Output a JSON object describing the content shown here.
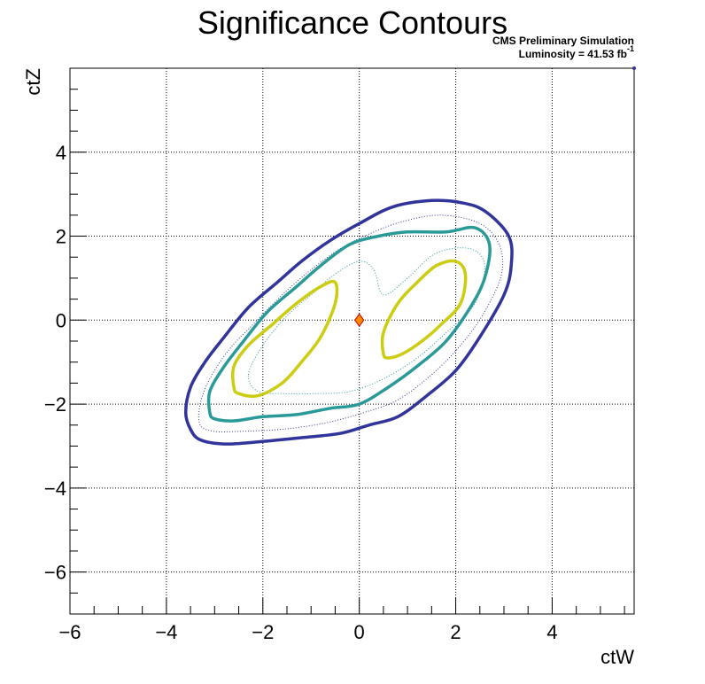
{
  "chart_data": {
    "type": "contour",
    "title": "Significance Contours",
    "annotation": {
      "line1": "CMS Preliminary Simulation",
      "line2_prefix": "Luminosity = 41.53 fb",
      "line2_superscript": "-1"
    },
    "xlabel": "ctW",
    "ylabel": "ctZ",
    "xlim": [
      -6,
      5.7
    ],
    "ylim": [
      -7,
      6
    ],
    "xticks": [
      -6,
      -4,
      -2,
      0,
      2,
      4
    ],
    "yticks": [
      -6,
      -4,
      -2,
      0,
      2,
      4
    ],
    "grid": true,
    "best_fit_point": {
      "x": 0,
      "y": 0,
      "fill": "#ff8800",
      "stroke": "#cc0000"
    },
    "contours": [
      {
        "name": "outer",
        "color": "#31349a",
        "style": "solid",
        "points": [
          [
            -3.5,
            -2.6
          ],
          [
            -3.6,
            -2.2
          ],
          [
            -3.5,
            -1.6
          ],
          [
            -3.2,
            -1.0
          ],
          [
            -2.8,
            -0.4
          ],
          [
            -2.3,
            0.3
          ],
          [
            -1.7,
            0.9
          ],
          [
            -1.2,
            1.4
          ],
          [
            -0.6,
            1.9
          ],
          [
            0,
            2.3
          ],
          [
            0.7,
            2.7
          ],
          [
            1.5,
            2.85
          ],
          [
            2.1,
            2.8
          ],
          [
            2.6,
            2.6
          ],
          [
            3.1,
            2.0
          ],
          [
            3.15,
            1.3
          ],
          [
            3.0,
            0.6
          ],
          [
            2.5,
            -0.4
          ],
          [
            2.0,
            -1.2
          ],
          [
            1.4,
            -1.8
          ],
          [
            0.8,
            -2.3
          ],
          [
            0.2,
            -2.5
          ],
          [
            -0.4,
            -2.7
          ],
          [
            -1.2,
            -2.8
          ],
          [
            -2.1,
            -2.9
          ],
          [
            -2.8,
            -2.95
          ],
          [
            -3.3,
            -2.85
          ]
        ]
      },
      {
        "name": "outer-thin",
        "color": "#31349a",
        "style": "dotted",
        "points": [
          [
            -3.3,
            -2.5
          ],
          [
            -3.3,
            -2.0
          ],
          [
            -3.1,
            -1.4
          ],
          [
            -2.7,
            -0.7
          ],
          [
            -2.2,
            -0.1
          ],
          [
            -1.6,
            0.6
          ],
          [
            -1.0,
            1.2
          ],
          [
            -0.4,
            1.7
          ],
          [
            0.2,
            2.05
          ],
          [
            0.9,
            2.35
          ],
          [
            1.7,
            2.5
          ],
          [
            2.5,
            2.3
          ],
          [
            2.9,
            1.8
          ],
          [
            2.95,
            1.1
          ],
          [
            2.6,
            0.2
          ],
          [
            2.1,
            -0.6
          ],
          [
            1.5,
            -1.3
          ],
          [
            0.8,
            -1.9
          ],
          [
            0.1,
            -2.2
          ],
          [
            -0.7,
            -2.45
          ],
          [
            -1.6,
            -2.6
          ],
          [
            -2.5,
            -2.65
          ],
          [
            -3.0,
            -2.65
          ]
        ]
      },
      {
        "name": "middle",
        "color": "#2a9a98",
        "style": "solid",
        "points": [
          [
            -3.1,
            -2.2
          ],
          [
            -3.1,
            -1.7
          ],
          [
            -2.8,
            -1.1
          ],
          [
            -2.4,
            -0.5
          ],
          [
            -1.9,
            0.2
          ],
          [
            -1.3,
            0.8
          ],
          [
            -0.8,
            1.3
          ],
          [
            -0.2,
            1.8
          ],
          [
            0.4,
            2.0
          ],
          [
            1.0,
            2.1
          ],
          [
            1.8,
            2.1
          ],
          [
            2.4,
            2.2
          ],
          [
            2.7,
            1.8
          ],
          [
            2.6,
            1.0
          ],
          [
            2.3,
            0.3
          ],
          [
            1.8,
            -0.5
          ],
          [
            1.2,
            -1.1
          ],
          [
            0.6,
            -1.6
          ],
          [
            0,
            -2.0
          ],
          [
            -0.6,
            -2.1
          ],
          [
            -1.3,
            -2.25
          ],
          [
            -2.0,
            -2.3
          ],
          [
            -2.6,
            -2.4
          ],
          [
            -3.0,
            -2.35
          ]
        ]
      },
      {
        "name": "middle-thin",
        "color": "#2a9a98",
        "style": "dotted",
        "points": [
          [
            -2.3,
            -1.3
          ],
          [
            -2.0,
            -0.6
          ],
          [
            -1.5,
            0.1
          ],
          [
            -1.0,
            0.6
          ],
          [
            -0.5,
            1.1
          ],
          [
            0,
            1.4
          ],
          [
            0.3,
            1.2
          ],
          [
            0.5,
            0.6
          ],
          [
            1.0,
            1.0
          ],
          [
            1.6,
            1.6
          ],
          [
            2.3,
            1.7
          ],
          [
            2.6,
            1.3
          ],
          [
            2.4,
            0.4
          ],
          [
            1.8,
            -0.3
          ],
          [
            1.2,
            -0.9
          ],
          [
            0.5,
            -1.4
          ],
          [
            -0.2,
            -1.7
          ],
          [
            -0.9,
            -1.75
          ],
          [
            -1.6,
            -1.75
          ],
          [
            -2.1,
            -1.7
          ]
        ]
      },
      {
        "name": "inner-left",
        "color": "#cccc11",
        "style": "solid",
        "points": [
          [
            -2.6,
            -1.6
          ],
          [
            -2.6,
            -1.1
          ],
          [
            -2.3,
            -0.6
          ],
          [
            -1.8,
            -0.1
          ],
          [
            -1.3,
            0.4
          ],
          [
            -0.8,
            0.8
          ],
          [
            -0.5,
            0.9
          ],
          [
            -0.5,
            0.4
          ],
          [
            -0.8,
            -0.4
          ],
          [
            -1.2,
            -1.0
          ],
          [
            -1.6,
            -1.5
          ],
          [
            -2.1,
            -1.8
          ],
          [
            -2.5,
            -1.75
          ]
        ]
      },
      {
        "name": "inner-right",
        "color": "#cccc11",
        "style": "solid",
        "points": [
          [
            0.5,
            -0.8
          ],
          [
            0.5,
            -0.3
          ],
          [
            0.8,
            0.4
          ],
          [
            1.2,
            0.9
          ],
          [
            1.6,
            1.3
          ],
          [
            2.0,
            1.4
          ],
          [
            2.2,
            1.1
          ],
          [
            2.1,
            0.4
          ],
          [
            1.7,
            -0.1
          ],
          [
            1.3,
            -0.5
          ],
          [
            0.9,
            -0.8
          ],
          [
            0.6,
            -0.9
          ]
        ]
      }
    ],
    "marker_top_right": {
      "color": "#31349a"
    }
  }
}
